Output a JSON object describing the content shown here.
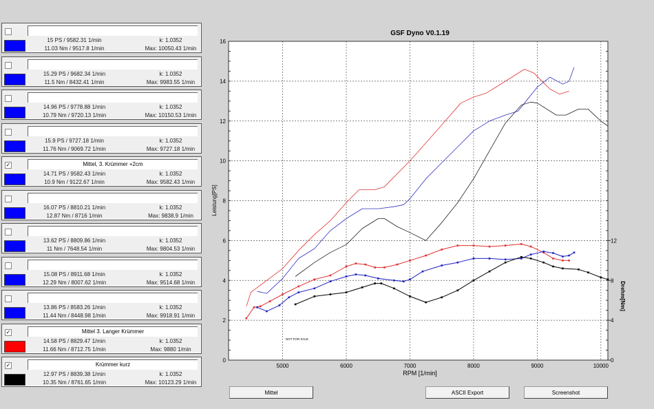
{
  "entries": [
    {
      "name": "",
      "checked": false,
      "color": "#0000ff",
      "ps": "15 PS / 9582.31 1/min",
      "nm": "11.03 Nm / 9517.8 1/min",
      "k": "k: 1.0352",
      "max": "Max: 10050.43 1/min"
    },
    {
      "name": "",
      "checked": false,
      "color": "#0000ff",
      "ps": "15.29 PS / 9682.34 1/min",
      "nm": "11.5 Nm / 8432.41 1/min",
      "k": "k: 1.0352",
      "max": "Max: 9983.55 1/min"
    },
    {
      "name": "",
      "checked": false,
      "color": "#0000ff",
      "ps": "14.96 PS / 9778.88 1/min",
      "nm": "10.79 Nm / 9720.13 1/min",
      "k": "k: 1.0352",
      "max": "Max: 10150.53 1/min"
    },
    {
      "name": "",
      "checked": false,
      "color": "#0000ff",
      "ps": "15.9 PS / 9727.18 1/min",
      "nm": "11.76 Nm / 9069.72 1/min",
      "k": "k: 1.0352",
      "max": "Max: 9727.18 1/min"
    },
    {
      "name": "Mittel, 3. Krümmer +2cm",
      "checked": true,
      "color": "#0000ff",
      "ps": "14.71 PS / 9582.43 1/min",
      "nm": "10.9 Nm / 9122.67 1/min",
      "k": "k: 1.0352",
      "max": "Max: 9582.43 1/min"
    },
    {
      "name": "",
      "checked": false,
      "color": "#0000ff",
      "ps": "16.07 PS / 8810.21 1/min",
      "nm": "12.87 Nm / 8716 1/min",
      "k": "k: 1.0352",
      "max": "Max: 9838.9 1/min"
    },
    {
      "name": "",
      "checked": false,
      "color": "#0000ff",
      "ps": "13.62 PS / 8809.86 1/min",
      "nm": "11 Nm / 7648.54 1/min",
      "k": "k: 1.0352",
      "max": "Max: 9804.53 1/min"
    },
    {
      "name": "",
      "checked": false,
      "color": "#0000ff",
      "ps": "15.08 PS / 8911.68 1/min",
      "nm": "12.29 Nm / 8007.62 1/min",
      "k": "k: 1.0352",
      "max": "Max: 9514.68 1/min"
    },
    {
      "name": "",
      "checked": false,
      "color": "#0000ff",
      "ps": "13.86 PS / 8583.26 1/min",
      "nm": "11.44 Nm / 8448.98 1/min",
      "k": "k: 1.0352",
      "max": "Max: 9918.91 1/min"
    },
    {
      "name": "Mittel 3. Langer  Krümmer",
      "checked": true,
      "color": "#ff0000",
      "ps": "14.58 PS / 8829.47 1/min",
      "nm": "11.66 Nm / 8712.75 1/min",
      "k": "k: 1.0352",
      "max": "Max: 9880 1/min"
    },
    {
      "name": "Krümmer kurz",
      "checked": true,
      "color": "#000000",
      "ps": "12.97 PS / 8839.38 1/min",
      "nm": "10.35 Nm / 8761.65 1/min",
      "k": "k: 1.0352",
      "max": "Max: 10123.29 1/min"
    }
  ],
  "check_glyph": "✓",
  "buttons": {
    "mittel": "Mittel",
    "ascii_export": "ASCII Export",
    "screenshot": "Screenshot"
  },
  "chart_data": {
    "type": "line",
    "title": "GSF Dyno V0.1.19",
    "xlabel": "RPM [1/min]",
    "ylabel": "Leistung[PS]",
    "y2label": "Drehm[Nm]",
    "annotation": "NOT FOR SALE",
    "xlim": [
      4150,
      10110
    ],
    "ylim": [
      0,
      16
    ],
    "y2lim": [
      0,
      32
    ],
    "xticks": [
      5000,
      6000,
      7000,
      8000,
      9000,
      10000
    ],
    "yticks": [
      0,
      2,
      4,
      6,
      8,
      10,
      12,
      14,
      16
    ],
    "y2ticks": [
      0,
      4,
      8,
      12
    ],
    "grid": true,
    "series": [
      {
        "axis": "PS",
        "color": "#e03030",
        "markers": false,
        "x": [
          4430,
          4500,
          4750,
          5000,
          5250,
          5500,
          5750,
          6000,
          6200,
          6450,
          6600,
          7000,
          7500,
          7800,
          8000,
          8200,
          8500,
          8800,
          8950,
          9200,
          9350,
          9500
        ],
        "y": [
          2.7,
          3.4,
          4.0,
          4.6,
          5.5,
          6.3,
          7.0,
          7.9,
          8.55,
          8.55,
          8.7,
          10.0,
          11.8,
          12.9,
          13.2,
          13.4,
          14.0,
          14.6,
          14.4,
          13.6,
          13.35,
          13.5
        ]
      },
      {
        "axis": "PS",
        "color": "#3030c0",
        "markers": false,
        "x": [
          4600,
          4750,
          5000,
          5250,
          5500,
          5750,
          6000,
          6250,
          6500,
          6750,
          6900,
          7000,
          7250,
          7500,
          7750,
          8000,
          8250,
          8500,
          8700,
          9000,
          9200,
          9400,
          9500,
          9580
        ],
        "y": [
          3.45,
          3.35,
          4.1,
          5.1,
          5.6,
          6.5,
          7.1,
          7.6,
          7.6,
          7.7,
          7.8,
          8.1,
          9.1,
          9.9,
          10.7,
          11.5,
          12.0,
          12.3,
          12.5,
          13.7,
          14.2,
          13.85,
          14.0,
          14.7
        ]
      },
      {
        "axis": "PS",
        "color": "#202020",
        "markers": false,
        "x": [
          5200,
          5500,
          5750,
          6000,
          6250,
          6500,
          6600,
          6800,
          7000,
          7250,
          7500,
          7750,
          8000,
          8250,
          8500,
          8750,
          8900,
          9000,
          9300,
          9450,
          9650,
          9800,
          10000,
          10110
        ],
        "y": [
          4.2,
          4.9,
          5.4,
          5.8,
          6.6,
          7.1,
          7.1,
          6.7,
          6.4,
          6.0,
          6.9,
          7.9,
          9.1,
          10.5,
          11.9,
          12.8,
          12.95,
          12.9,
          12.3,
          12.3,
          12.6,
          12.6,
          12.0,
          11.75
        ]
      },
      {
        "axis": "Nm",
        "color": "#e03030",
        "markers": true,
        "x": [
          4430,
          4550,
          4650,
          4800,
          5000,
          5250,
          5500,
          5750,
          6000,
          6150,
          6300,
          6450,
          6600,
          6800,
          7000,
          7250,
          7500,
          7750,
          8000,
          8250,
          8500,
          8750,
          8900,
          9100,
          9250,
          9400,
          9500
        ],
        "y": [
          4.2,
          5.3,
          5.4,
          5.9,
          6.6,
          7.4,
          8.1,
          8.5,
          9.4,
          9.7,
          9.6,
          9.3,
          9.3,
          9.6,
          10.0,
          10.5,
          11.1,
          11.5,
          11.5,
          11.4,
          11.5,
          11.65,
          11.4,
          10.8,
          10.2,
          10.0,
          10.0
        ]
      },
      {
        "axis": "Nm",
        "color": "#2020c0",
        "markers": true,
        "x": [
          4600,
          4750,
          4950,
          5100,
          5250,
          5500,
          5750,
          6000,
          6150,
          6300,
          6500,
          6750,
          6900,
          7000,
          7200,
          7500,
          7750,
          8000,
          8250,
          8500,
          8750,
          8900,
          9100,
          9250,
          9400,
          9500,
          9580
        ],
        "y": [
          5.3,
          4.9,
          5.5,
          6.3,
          6.8,
          7.2,
          7.9,
          8.4,
          8.6,
          8.5,
          8.2,
          8.0,
          7.9,
          8.1,
          8.9,
          9.5,
          9.8,
          10.2,
          10.2,
          10.1,
          10.2,
          10.6,
          10.9,
          10.75,
          10.4,
          10.5,
          10.8
        ]
      },
      {
        "axis": "Nm",
        "color": "#000000",
        "markers": true,
        "x": [
          5200,
          5500,
          5750,
          6000,
          6250,
          6450,
          6550,
          6750,
          7000,
          7250,
          7500,
          7750,
          8000,
          8250,
          8500,
          8750,
          8900,
          9100,
          9250,
          9400,
          9650,
          9800,
          10000,
          10110
        ],
        "y": [
          5.6,
          6.4,
          6.6,
          6.8,
          7.3,
          7.7,
          7.7,
          7.2,
          6.4,
          5.8,
          6.3,
          7.0,
          8.0,
          8.9,
          9.8,
          10.35,
          10.2,
          9.8,
          9.4,
          9.2,
          9.1,
          8.8,
          8.3,
          8.1
        ]
      }
    ]
  }
}
